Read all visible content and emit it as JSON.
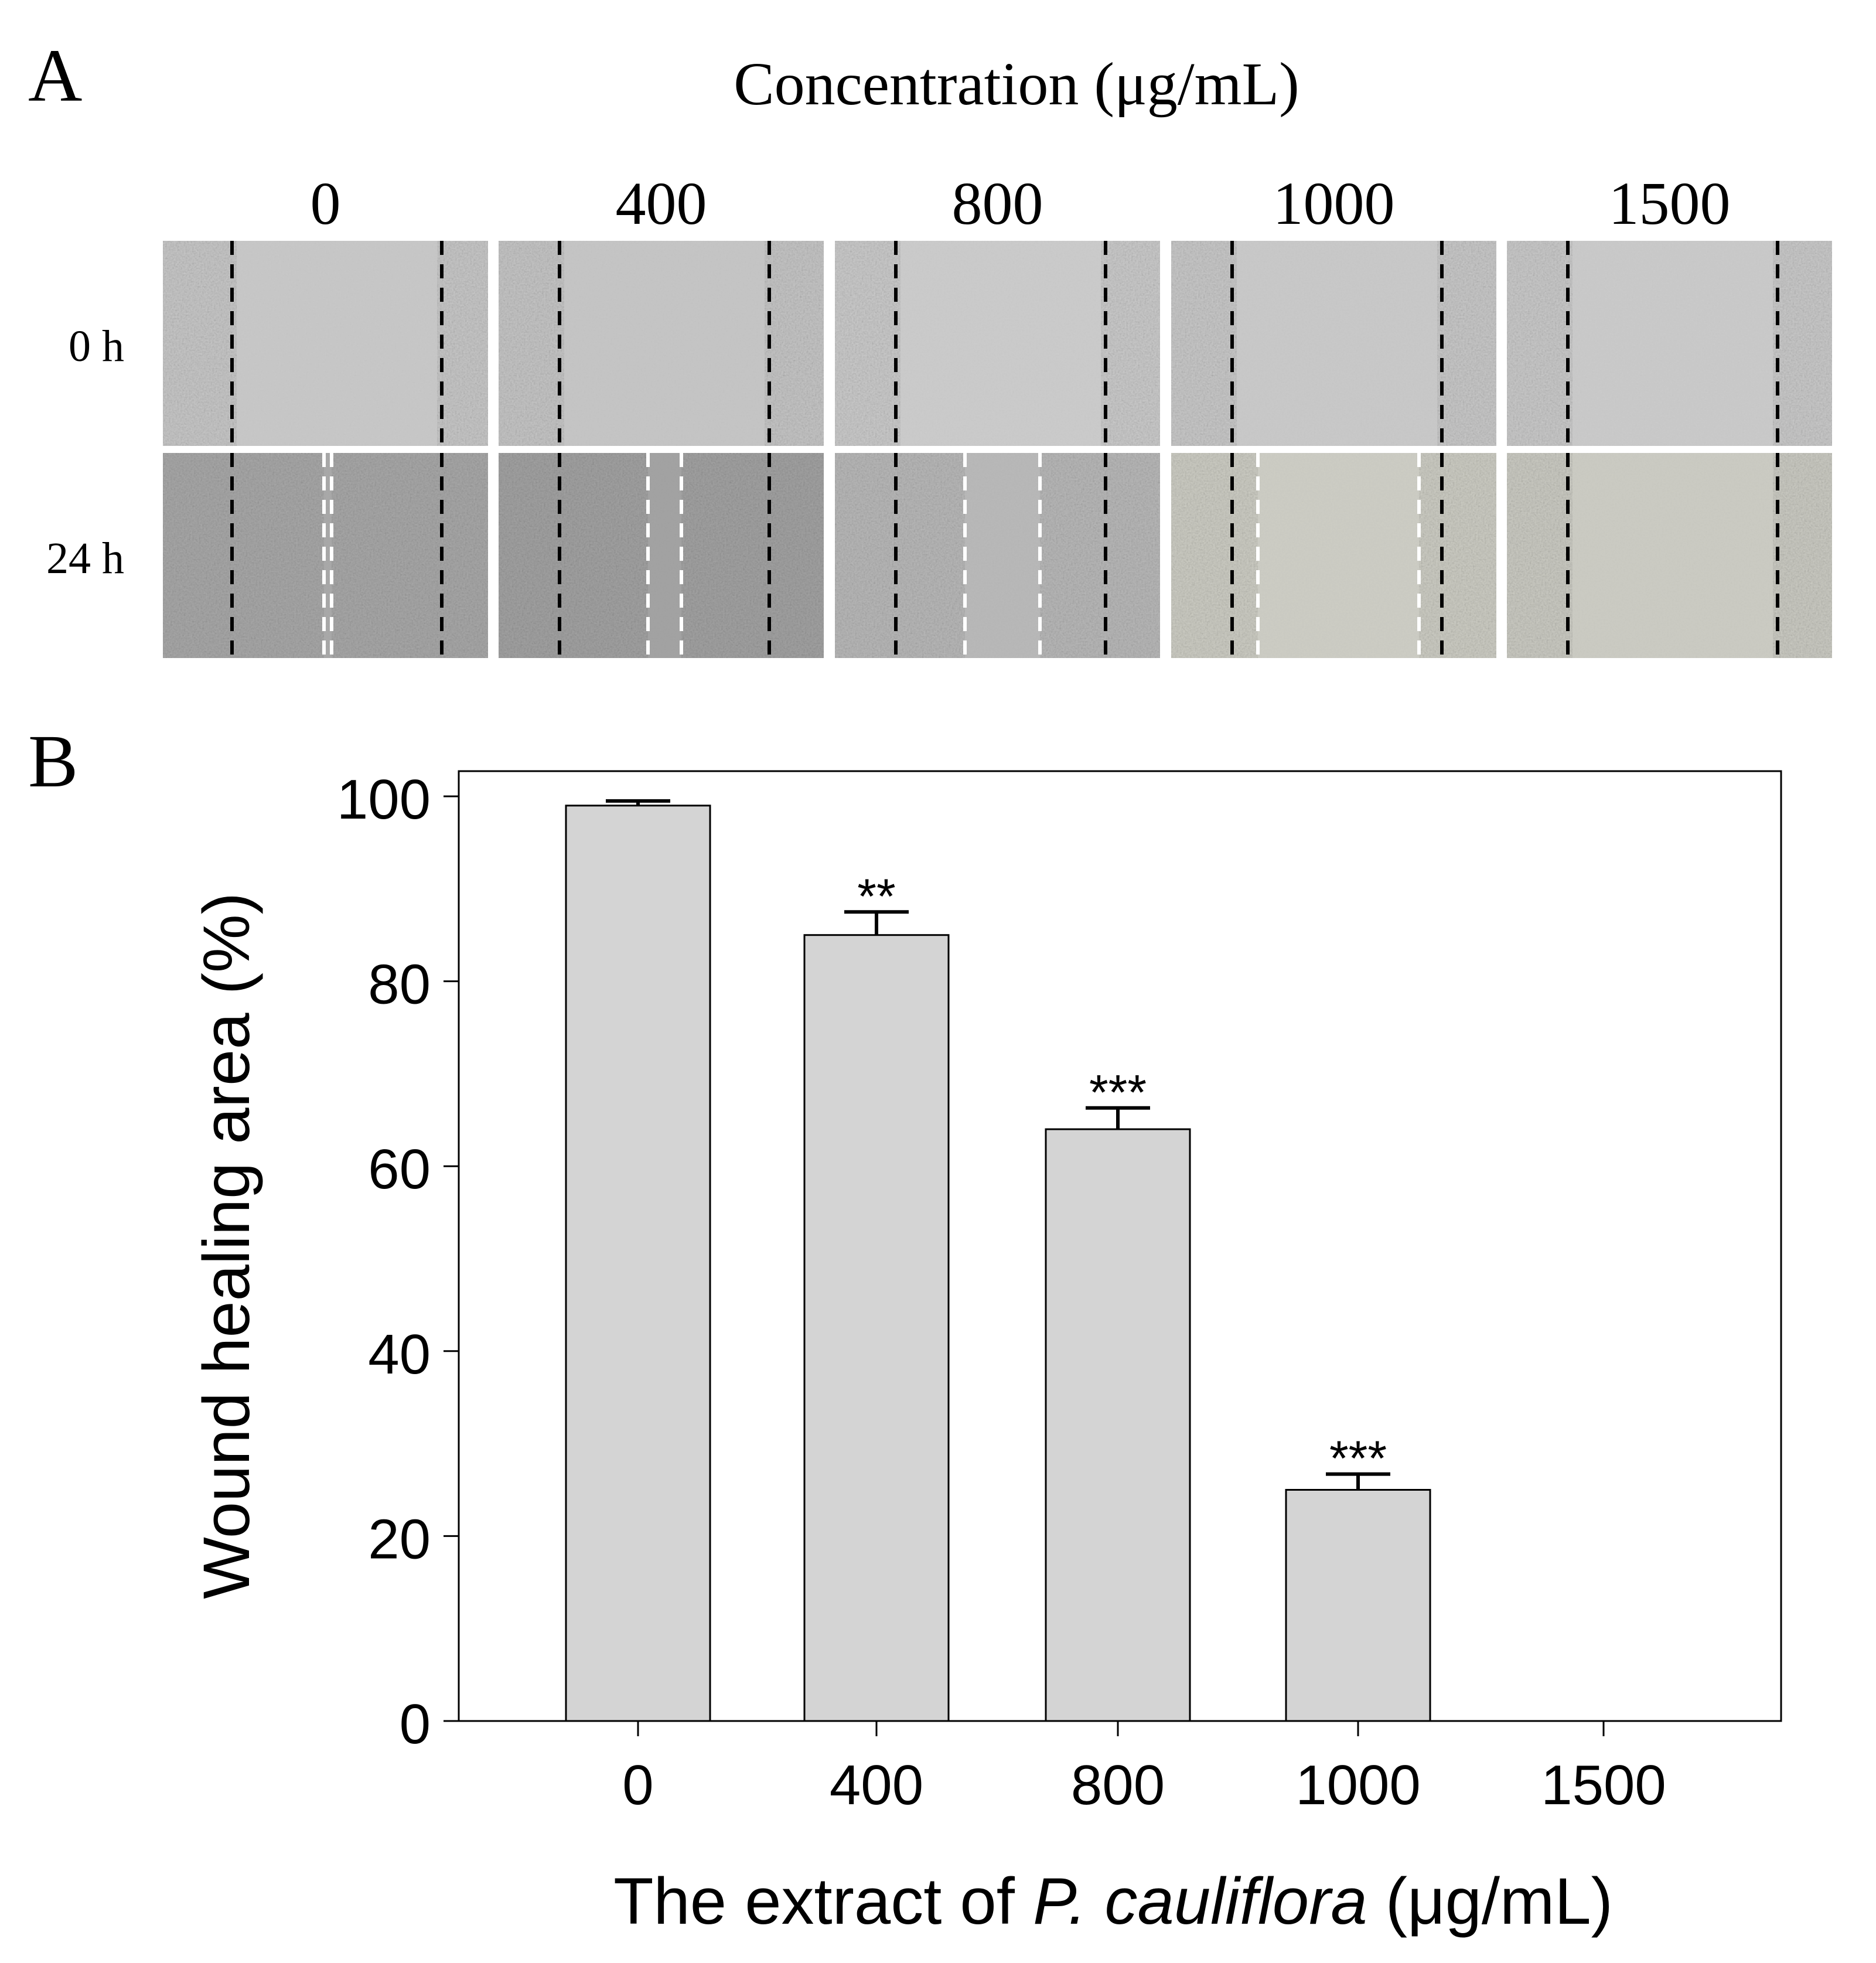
{
  "panel_a": {
    "label": "A",
    "title": "Concentration (μg/mL)",
    "concentrations": [
      "0",
      "400",
      "800",
      "1000",
      "1500"
    ],
    "time_labels": [
      "0 h",
      "24 h"
    ]
  },
  "panel_b": {
    "label": "B"
  },
  "chart_data": {
    "type": "bar",
    "categories": [
      "0",
      "400",
      "800",
      "1000",
      "1500"
    ],
    "values": [
      99,
      85,
      64,
      25,
      0
    ],
    "errors": [
      0.5,
      2.5,
      2.3,
      1.7,
      0
    ],
    "significance": [
      "",
      "**",
      "***",
      "***",
      ""
    ],
    "ylabel": "Wound healing area (%)",
    "xlabel_prefix": "The extract of ",
    "xlabel_species": "P. cauliflora",
    "xlabel_suffix": " (μg/mL)",
    "ylim": [
      0,
      100
    ],
    "yticks": [
      0,
      20,
      40,
      60,
      80,
      100
    ],
    "bar_color": "#d4d4d4",
    "grid": false
  }
}
